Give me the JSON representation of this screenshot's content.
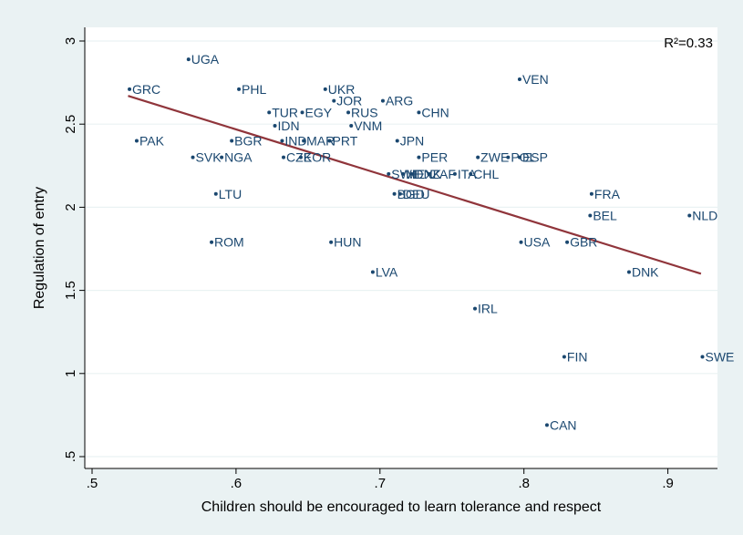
{
  "chart_data": {
    "type": "scatter",
    "xlabel": "Children should be encouraged to learn tolerance and respect",
    "ylabel": "Regulation of entry",
    "annotation": "R²=0.33",
    "xlim": [
      0.48,
      0.93
    ],
    "ylim": [
      0.45,
      3.1
    ],
    "x_ticks": [
      0.5,
      0.6,
      0.7,
      0.8,
      0.9
    ],
    "x_tick_labels": [
      ".5",
      ".6",
      ".7",
      ".8",
      ".9"
    ],
    "y_ticks": [
      0.5,
      1,
      1.5,
      2,
      2.5,
      3
    ],
    "y_tick_labels": [
      ".5",
      "1",
      "1.5",
      "2",
      "2.5",
      "3"
    ],
    "grid": "horizontal",
    "point_color": "#1a476f",
    "fit_line_color": "#90353b",
    "points": [
      {
        "label": "UGA",
        "x": 0.567,
        "y": 2.89
      },
      {
        "label": "GRC",
        "x": 0.526,
        "y": 2.71
      },
      {
        "label": "PHL",
        "x": 0.602,
        "y": 2.71
      },
      {
        "label": "UKR",
        "x": 0.662,
        "y": 2.71
      },
      {
        "label": "VEN",
        "x": 0.797,
        "y": 2.77
      },
      {
        "label": "JOR",
        "x": 0.668,
        "y": 2.64
      },
      {
        "label": "ARG",
        "x": 0.702,
        "y": 2.64
      },
      {
        "label": "TUR",
        "x": 0.623,
        "y": 2.57
      },
      {
        "label": "EGY",
        "x": 0.646,
        "y": 2.57
      },
      {
        "label": "RUS",
        "x": 0.678,
        "y": 2.57
      },
      {
        "label": "CHN",
        "x": 0.727,
        "y": 2.57
      },
      {
        "label": "IDN",
        "x": 0.627,
        "y": 2.49
      },
      {
        "label": "VNM",
        "x": 0.68,
        "y": 2.49
      },
      {
        "label": "PAK",
        "x": 0.531,
        "y": 2.4
      },
      {
        "label": "BGR",
        "x": 0.597,
        "y": 2.4
      },
      {
        "label": "IND",
        "x": 0.632,
        "y": 2.4
      },
      {
        "label": "MAR",
        "x": 0.647,
        "y": 2.4
      },
      {
        "label": "PRT",
        "x": 0.665,
        "y": 2.4
      },
      {
        "label": "JPN",
        "x": 0.712,
        "y": 2.4
      },
      {
        "label": "SVK",
        "x": 0.57,
        "y": 2.3
      },
      {
        "label": "NGA",
        "x": 0.59,
        "y": 2.3
      },
      {
        "label": "CZE",
        "x": 0.633,
        "y": 2.3
      },
      {
        "label": "KOR",
        "x": 0.645,
        "y": 2.3
      },
      {
        "label": "PER",
        "x": 0.727,
        "y": 2.3
      },
      {
        "label": "ZWE",
        "x": 0.768,
        "y": 2.3
      },
      {
        "label": "POL",
        "x": 0.789,
        "y": 2.3
      },
      {
        "label": "ESP",
        "x": 0.797,
        "y": 2.3
      },
      {
        "label": "SWE",
        "x": 0.706,
        "y": 2.2
      },
      {
        "label": "MEX",
        "x": 0.716,
        "y": 2.2
      },
      {
        "label": "DNK",
        "x": 0.722,
        "y": 2.2
      },
      {
        "label": "ZAF",
        "x": 0.734,
        "y": 2.2
      },
      {
        "label": "ITA",
        "x": 0.752,
        "y": 2.2
      },
      {
        "label": "CHL",
        "x": 0.763,
        "y": 2.2
      },
      {
        "label": "LTU",
        "x": 0.586,
        "y": 2.08
      },
      {
        "label": "BGD",
        "x": 0.71,
        "y": 2.08
      },
      {
        "label": "DEU",
        "x": 0.714,
        "y": 2.08
      },
      {
        "label": "FRA",
        "x": 0.847,
        "y": 2.08
      },
      {
        "label": "BEL",
        "x": 0.846,
        "y": 1.95
      },
      {
        "label": "NLD",
        "x": 0.915,
        "y": 1.95
      },
      {
        "label": "ROM",
        "x": 0.583,
        "y": 1.79
      },
      {
        "label": "HUN",
        "x": 0.666,
        "y": 1.79
      },
      {
        "label": "USA",
        "x": 0.798,
        "y": 1.79
      },
      {
        "label": "GBR",
        "x": 0.83,
        "y": 1.79
      },
      {
        "label": "LVA",
        "x": 0.695,
        "y": 1.61
      },
      {
        "label": "DNK",
        "x": 0.873,
        "y": 1.61
      },
      {
        "label": "IRL",
        "x": 0.766,
        "y": 1.39
      },
      {
        "label": "FIN",
        "x": 0.828,
        "y": 1.1
      },
      {
        "label": "SWE",
        "x": 0.924,
        "y": 1.1
      },
      {
        "label": "CAN",
        "x": 0.816,
        "y": 0.69
      }
    ],
    "fit_line": {
      "x": [
        0.525,
        0.923
      ],
      "y": [
        2.67,
        1.6
      ]
    }
  }
}
